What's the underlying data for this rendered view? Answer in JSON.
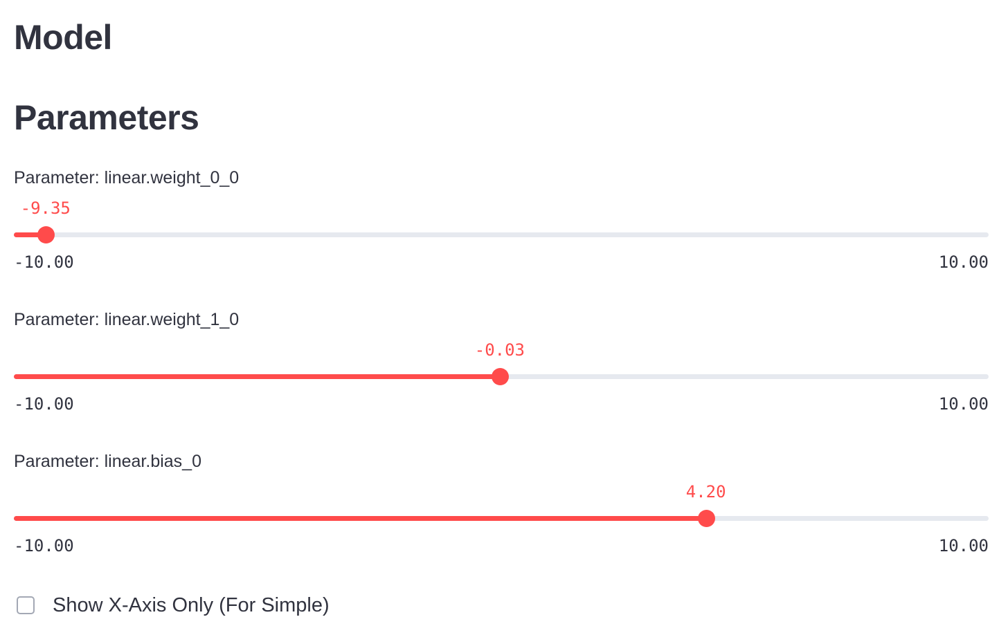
{
  "headers": {
    "model": "Model",
    "parameters": "Parameters"
  },
  "accent_color": "#ff4b4b",
  "sliders": [
    {
      "label": "Parameter: linear.weight_0_0",
      "value": -9.35,
      "value_text": "-9.35",
      "min": -10,
      "max": 10,
      "min_text": "-10.00",
      "max_text": "10.00"
    },
    {
      "label": "Parameter: linear.weight_1_0",
      "value": -0.03,
      "value_text": "-0.03",
      "min": -10,
      "max": 10,
      "min_text": "-10.00",
      "max_text": "10.00"
    },
    {
      "label": "Parameter: linear.bias_0",
      "value": 4.2,
      "value_text": "4.20",
      "min": -10,
      "max": 10,
      "min_text": "-10.00",
      "max_text": "10.00"
    }
  ],
  "checkbox": {
    "label": "Show X-Axis Only (For Simple)",
    "checked": false
  }
}
